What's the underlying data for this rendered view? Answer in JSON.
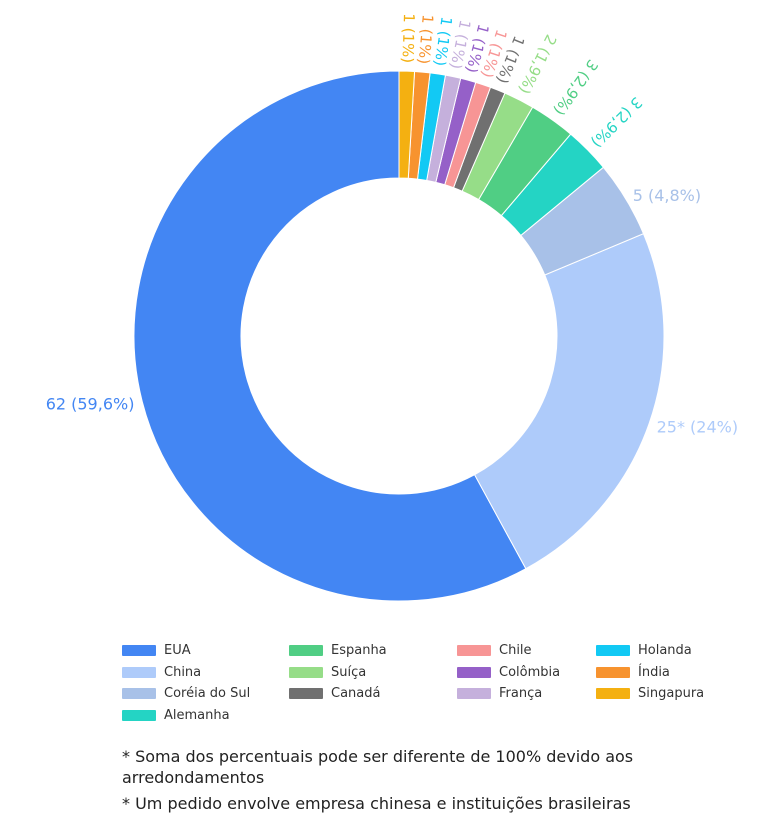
{
  "chart_data": {
    "type": "pie",
    "variant": "donut",
    "title": "",
    "slices": [
      {
        "name": "EUA",
        "value": 62,
        "label": "62 (59,6%)",
        "color": "#4386F3"
      },
      {
        "name": "China",
        "value": 25,
        "label": "25* (24%)",
        "color": "#AECBFA"
      },
      {
        "name": "Coréia do Sul",
        "value": 5,
        "label": "5 (4,8%)",
        "color": "#A8C1E8"
      },
      {
        "name": "Alemanha",
        "value": 3,
        "label": "3 (2,9%)",
        "color": "#24D4C4"
      },
      {
        "name": "Espanha",
        "value": 3,
        "label": "3 (2,9%)",
        "color": "#50CE84"
      },
      {
        "name": "Suíça",
        "value": 2,
        "label": "2 (1,9%)",
        "color": "#96DD88"
      },
      {
        "name": "Canadá",
        "value": 1,
        "label": "1 (1%)",
        "color": "#707070"
      },
      {
        "name": "Chile",
        "value": 1,
        "label": "1 (1%)",
        "color": "#F79595"
      },
      {
        "name": "Colômbia",
        "value": 1,
        "label": "1 (1%)",
        "color": "#9560C8"
      },
      {
        "name": "França",
        "value": 1,
        "label": "1 (1%)",
        "color": "#C5B0DC"
      },
      {
        "name": "Holanda",
        "value": 1,
        "label": "1 (1%)",
        "color": "#12C9F4"
      },
      {
        "name": "Índia",
        "value": 1,
        "label": "1 (1%)",
        "color": "#F7932F"
      },
      {
        "name": "Singapura",
        "value": 1,
        "label": "1 (1%)",
        "color": "#F4B011"
      }
    ],
    "legend": {
      "placement": "bottom",
      "columns": [
        [
          "EUA",
          "China",
          "Coréia do Sul",
          "Alemanha"
        ],
        [
          "Espanha",
          "Suíça",
          "Canadá"
        ],
        [
          "Chile",
          "Colômbia",
          "França"
        ],
        [
          "Holanda",
          "Índia",
          "Singapura"
        ]
      ]
    }
  },
  "notes": [
    "* Soma dos percentuais pode ser diferente de 100% devido aos arredondamentos",
    "* Um pedido envolve empresa chinesa e instituições brasileiras"
  ]
}
